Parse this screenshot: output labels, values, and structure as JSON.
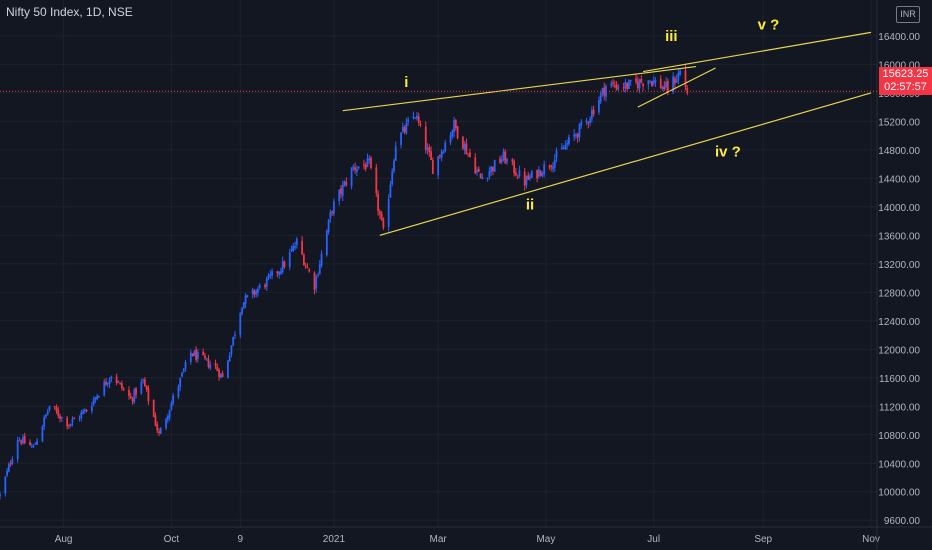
{
  "header": {
    "title": "Nifty 50 Index, 1D, NSE",
    "currency": "INR"
  },
  "last_price": {
    "value": "15623.25",
    "countdown": "02:57:57",
    "color": "#f23645"
  },
  "colors": {
    "up": "#2962ff",
    "down": "#f23645",
    "trendline": "#e8d44d",
    "wave_label": "#ffeb3b",
    "grid": "#1e222d",
    "axis_text": "#b2b5be",
    "background": "#131722"
  },
  "chart_data": {
    "type": "candlestick",
    "title": "Nifty 50 Index, 1D, NSE",
    "y_axis": {
      "ylim": [
        9300,
        16750
      ],
      "position": "right",
      "ticks": [
        "9600.00",
        "10000.00",
        "10400.00",
        "10800.00",
        "11200.00",
        "11600.00",
        "12000.00",
        "12400.00",
        "12800.00",
        "13200.00",
        "13600.00",
        "14000.00",
        "14400.00",
        "14800.00",
        "15200.00",
        "15600.00",
        "16000.00",
        "16400.00"
      ]
    },
    "x_axis": {
      "range": [
        "2020-06-26",
        "2021-11-01"
      ],
      "ticks": [
        {
          "label": "Aug",
          "date": "2020-08-01"
        },
        {
          "label": "Oct",
          "date": "2020-10-01"
        },
        {
          "label": "9",
          "date": "2020-11-09"
        },
        {
          "label": "2021",
          "date": "2021-01-01"
        },
        {
          "label": "Mar",
          "date": "2021-03-01"
        },
        {
          "label": "May",
          "date": "2021-05-01"
        },
        {
          "label": "Jul",
          "date": "2021-07-01"
        },
        {
          "label": "Sep",
          "date": "2021-09-01"
        },
        {
          "label": "Nov",
          "date": "2021-11-01"
        }
      ]
    },
    "series_close": [
      [
        "2020-06-26",
        9950
      ],
      [
        "2020-07-06",
        10750
      ],
      [
        "2020-07-15",
        10620
      ],
      [
        "2020-07-24",
        11200
      ],
      [
        "2020-08-04",
        10950
      ],
      [
        "2020-08-14",
        11150
      ],
      [
        "2020-08-28",
        11650
      ],
      [
        "2020-09-08",
        11300
      ],
      [
        "2020-09-15",
        11550
      ],
      [
        "2020-09-24",
        10800
      ],
      [
        "2020-10-05",
        11500
      ],
      [
        "2020-10-12",
        11950
      ],
      [
        "2020-10-26",
        11750
      ],
      [
        "2020-10-30",
        11600
      ],
      [
        "2020-11-05",
        12150
      ],
      [
        "2020-11-10",
        12650
      ],
      [
        "2020-11-24",
        12950
      ],
      [
        "2020-12-04",
        13200
      ],
      [
        "2020-12-11",
        13500
      ],
      [
        "2020-12-21",
        12900
      ],
      [
        "2020-12-31",
        13980
      ],
      [
        "2021-01-12",
        14550
      ],
      [
        "2021-01-21",
        14600
      ],
      [
        "2021-01-29",
        13630
      ],
      [
        "2021-02-05",
        14900
      ],
      [
        "2021-02-16",
        15300
      ],
      [
        "2021-02-26",
        14550
      ],
      [
        "2021-03-10",
        15150
      ],
      [
        "2021-03-25",
        14400
      ],
      [
        "2021-04-07",
        14700
      ],
      [
        "2021-04-19",
        14350
      ],
      [
        "2021-05-05",
        14650
      ],
      [
        "2021-05-24",
        15200
      ],
      [
        "2021-06-04",
        15700
      ],
      [
        "2021-06-18",
        15700
      ],
      [
        "2021-06-28",
        15800
      ],
      [
        "2021-07-09",
        15650
      ],
      [
        "2021-07-16",
        15900
      ],
      [
        "2021-07-20",
        15623
      ]
    ],
    "trendlines": [
      {
        "name": "upper-trendline",
        "from": [
          "2021-01-06",
          15350
        ],
        "to": [
          "2021-07-25",
          15970
        ]
      },
      {
        "name": "lower-trendline",
        "from": [
          "2021-01-27",
          13600
        ],
        "to": [
          "2021-11-01",
          15600
        ]
      },
      {
        "name": "outer-trendline",
        "from": [
          "2021-06-25",
          15900
        ],
        "to": [
          "2021-11-01",
          16450
        ]
      },
      {
        "name": "inner-wedge-trendline",
        "from": [
          "2021-06-22",
          15400
        ],
        "to": [
          "2021-08-05",
          15950
        ]
      }
    ],
    "annotations": [
      {
        "text": "i",
        "date": "2021-02-11",
        "price": 15680
      },
      {
        "text": "ii",
        "date": "2021-04-22",
        "price": 13960
      },
      {
        "text": "iii",
        "date": "2021-07-11",
        "price": 16330
      },
      {
        "text": "iv  ?",
        "date": "2021-08-12",
        "price": 14710
      },
      {
        "text": "v  ?",
        "date": "2021-09-04",
        "price": 16490
      }
    ]
  }
}
